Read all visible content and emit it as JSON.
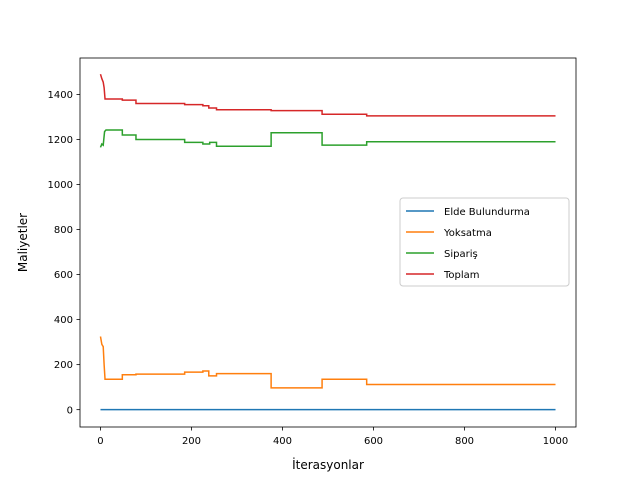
{
  "chart_data": {
    "type": "line",
    "xlabel": "İterasyonlar",
    "ylabel": "Maliyetler",
    "xlim": [
      -45,
      1045
    ],
    "ylim": [
      -77,
      1562
    ],
    "xticks": [
      0,
      200,
      400,
      600,
      800,
      1000
    ],
    "yticks": [
      0,
      200,
      400,
      600,
      800,
      1000,
      1200,
      1400
    ],
    "grid": false,
    "legend_position": "center-right",
    "series": [
      {
        "name": "Elde Bulundurma",
        "color": "#1f77b4",
        "points": [
          [
            0,
            0
          ],
          [
            1000,
            0
          ]
        ]
      },
      {
        "name": "Yoksatma",
        "color": "#ff7f0e",
        "points": [
          [
            0,
            325
          ],
          [
            3,
            290
          ],
          [
            6,
            280
          ],
          [
            8,
            200
          ],
          [
            10,
            135
          ],
          [
            48,
            135
          ],
          [
            48,
            155
          ],
          [
            78,
            155
          ],
          [
            78,
            158
          ],
          [
            185,
            158
          ],
          [
            185,
            167
          ],
          [
            225,
            167
          ],
          [
            225,
            172
          ],
          [
            238,
            172
          ],
          [
            238,
            150
          ],
          [
            255,
            150
          ],
          [
            255,
            160
          ],
          [
            375,
            160
          ],
          [
            375,
            97
          ],
          [
            487,
            97
          ],
          [
            487,
            135
          ],
          [
            585,
            135
          ],
          [
            585,
            112
          ],
          [
            1000,
            112
          ]
        ]
      },
      {
        "name": "Sipariş",
        "color": "#2ca02c",
        "points": [
          [
            0,
            1165
          ],
          [
            3,
            1180
          ],
          [
            6,
            1175
          ],
          [
            9,
            1235
          ],
          [
            12,
            1242
          ],
          [
            48,
            1242
          ],
          [
            48,
            1220
          ],
          [
            78,
            1220
          ],
          [
            78,
            1200
          ],
          [
            185,
            1200
          ],
          [
            185,
            1187
          ],
          [
            225,
            1187
          ],
          [
            225,
            1180
          ],
          [
            240,
            1180
          ],
          [
            240,
            1187
          ],
          [
            255,
            1187
          ],
          [
            255,
            1170
          ],
          [
            375,
            1170
          ],
          [
            375,
            1230
          ],
          [
            487,
            1230
          ],
          [
            487,
            1175
          ],
          [
            585,
            1175
          ],
          [
            585,
            1190
          ],
          [
            1000,
            1190
          ]
        ]
      },
      {
        "name": "Toplam",
        "color": "#d62728",
        "points": [
          [
            0,
            1490
          ],
          [
            3,
            1470
          ],
          [
            6,
            1455
          ],
          [
            8,
            1430
          ],
          [
            10,
            1380
          ],
          [
            48,
            1380
          ],
          [
            48,
            1375
          ],
          [
            78,
            1375
          ],
          [
            78,
            1360
          ],
          [
            185,
            1360
          ],
          [
            185,
            1355
          ],
          [
            225,
            1355
          ],
          [
            225,
            1350
          ],
          [
            238,
            1350
          ],
          [
            238,
            1340
          ],
          [
            255,
            1340
          ],
          [
            255,
            1332
          ],
          [
            375,
            1332
          ],
          [
            375,
            1328
          ],
          [
            487,
            1328
          ],
          [
            487,
            1312
          ],
          [
            585,
            1312
          ],
          [
            585,
            1305
          ],
          [
            1000,
            1305
          ]
        ]
      }
    ]
  }
}
